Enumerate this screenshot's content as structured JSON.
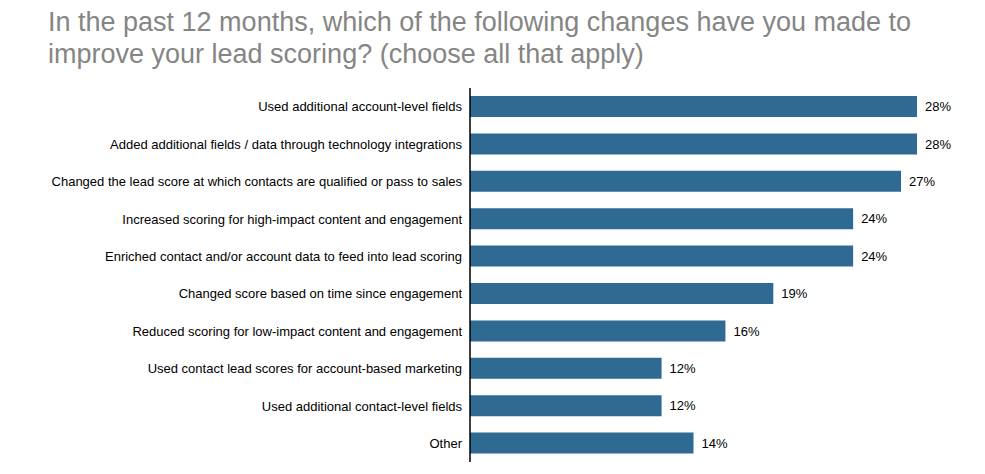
{
  "chart_data": {
    "type": "bar",
    "orientation": "horizontal",
    "title": "In the past 12 months, which of the following changes have you made to improve your lead scoring? (choose all that apply)",
    "categories": [
      "Used additional account-level fields",
      "Added additional fields / data through technology integrations",
      "Changed the lead score at which contacts are qualified or pass to sales",
      "Increased scoring for high-impact content and engagement",
      "Enriched contact and/or account data to feed into lead scoring",
      "Changed score based on time since engagement",
      "Reduced scoring for low-impact content and engagement",
      "Used contact lead scores for account-based marketing",
      "Used additional contact-level fields",
      "Other"
    ],
    "values": [
      28,
      28,
      27,
      24,
      24,
      19,
      16,
      12,
      12,
      14
    ],
    "value_labels": [
      "28%",
      "28%",
      "27%",
      "24%",
      "24%",
      "19%",
      "16%",
      "12%",
      "12%",
      "14%"
    ],
    "data_labels": true,
    "tick_labels": "y",
    "grid": false,
    "xlim": [
      0,
      28
    ],
    "color": "#2e6a92"
  }
}
